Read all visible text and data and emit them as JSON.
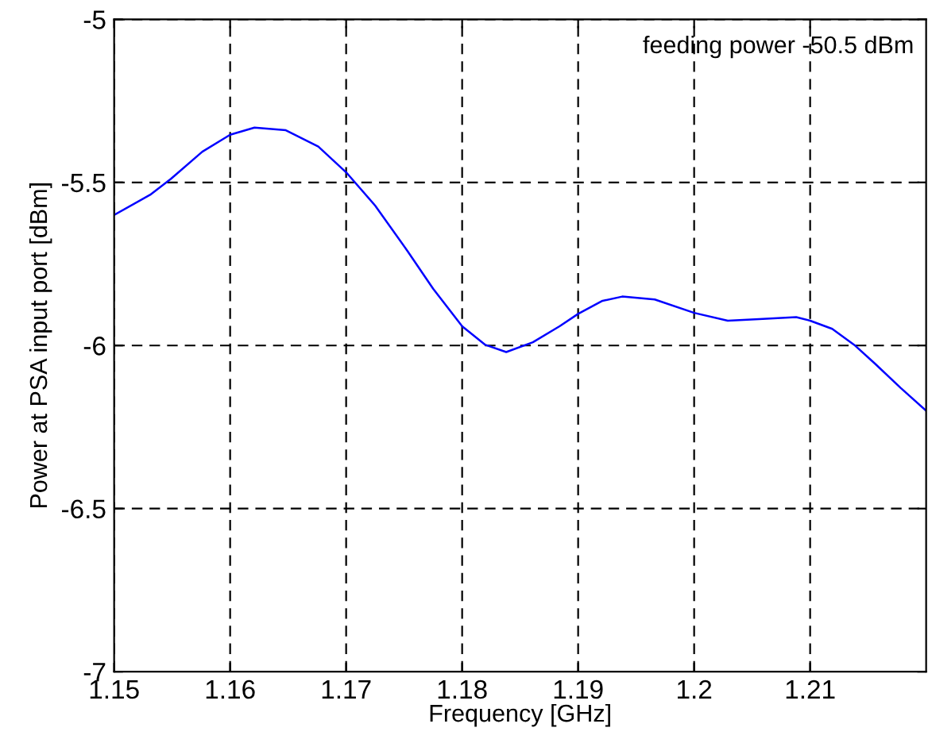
{
  "chart_data": {
    "type": "line",
    "xlabel": "Frequency [GHz]",
    "ylabel": "Power at PSA input port [dBm]",
    "annotations": [
      "feeding power -50.5 dBm"
    ],
    "x": [
      1.15,
      1.1531,
      1.1549,
      1.1576,
      1.16,
      1.1621,
      1.1648,
      1.1676,
      1.17,
      1.1725,
      1.1753,
      1.1775,
      1.18,
      1.182,
      1.1838,
      1.1861,
      1.1884,
      1.19,
      1.1921,
      1.1938,
      1.1966,
      1.2,
      1.2029,
      1.2056,
      1.2088,
      1.21,
      1.2119,
      1.2138,
      1.2156,
      1.2178,
      1.22
    ],
    "series": [
      {
        "color": "#0000ff",
        "values": [
          -5.6,
          -5.538,
          -5.489,
          -5.406,
          -5.354,
          -5.332,
          -5.34,
          -5.39,
          -5.469,
          -5.571,
          -5.711,
          -5.826,
          -5.941,
          -5.998,
          -6.02,
          -5.99,
          -5.941,
          -5.903,
          -5.863,
          -5.85,
          -5.859,
          -5.9,
          -5.924,
          -5.919,
          -5.913,
          -5.924,
          -5.949,
          -5.998,
          -6.056,
          -6.13,
          -6.2
        ]
      }
    ],
    "xlim": [
      1.15,
      1.22
    ],
    "xticks": [
      1.15,
      1.16,
      1.17,
      1.18,
      1.19,
      1.2,
      1.21
    ],
    "ylim": [
      -7,
      -5
    ],
    "yticks": [
      -7,
      -6.5,
      -6,
      -5.5,
      -5
    ],
    "grid": true,
    "line_style": "solid",
    "marker": "none",
    "legend": false
  }
}
